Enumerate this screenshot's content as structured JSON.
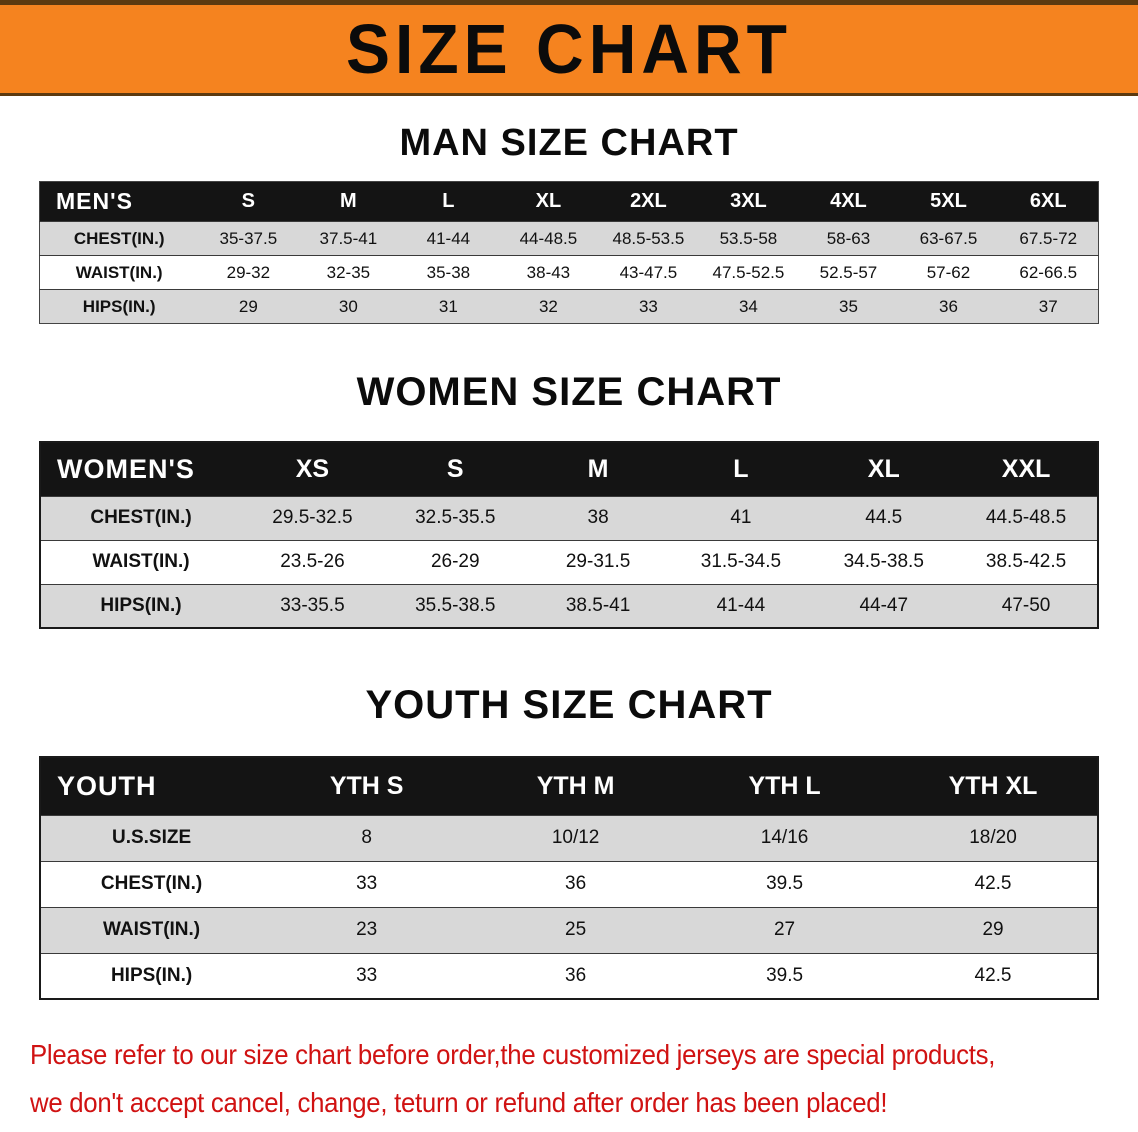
{
  "page": {
    "banner_title": "SIZE CHART",
    "note_line1": "Please refer to our size chart before order,the customized jerseys are special products,",
    "note_line2": "we don't accept cancel, change, teturn or refund after order has been placed!"
  },
  "colors": {
    "banner_bg": "#F5831F",
    "banner_border": "#5C3A10",
    "table_header_bg": "#141414",
    "table_header_text": "#FFFFFF",
    "row_bg": "#FFFFFF",
    "row_alt_bg": "#D8D8D8",
    "note_text": "#D01212",
    "body_text": "#111111"
  },
  "tables": [
    {
      "id": "men",
      "heading": "MAN SIZE CHART",
      "header_label": "MEN'S",
      "columns": [
        "S",
        "M",
        "L",
        "XL",
        "2XL",
        "3XL",
        "4XL",
        "5XL",
        "6XL"
      ],
      "rows": [
        {
          "label": "CHEST(IN.)",
          "values": [
            "35-37.5",
            "37.5-41",
            "41-44",
            "44-48.5",
            "48.5-53.5",
            "53.5-58",
            "58-63",
            "63-67.5",
            "67.5-72"
          ]
        },
        {
          "label": "WAIST(IN.)",
          "values": [
            "29-32",
            "32-35",
            "35-38",
            "38-43",
            "43-47.5",
            "47.5-52.5",
            "52.5-57",
            "57-62",
            "62-66.5"
          ]
        },
        {
          "label": "HIPS(IN.)",
          "values": [
            "29",
            "30",
            "31",
            "32",
            "33",
            "34",
            "35",
            "36",
            "37"
          ]
        }
      ]
    },
    {
      "id": "women",
      "heading": "WOMEN SIZE CHART",
      "header_label": "WOMEN'S",
      "columns": [
        "XS",
        "S",
        "M",
        "L",
        "XL",
        "XXL"
      ],
      "rows": [
        {
          "label": "CHEST(IN.)",
          "values": [
            "29.5-32.5",
            "32.5-35.5",
            "38",
            "41",
            "44.5",
            "44.5-48.5"
          ]
        },
        {
          "label": "WAIST(IN.)",
          "values": [
            "23.5-26",
            "26-29",
            "29-31.5",
            "31.5-34.5",
            "34.5-38.5",
            "38.5-42.5"
          ]
        },
        {
          "label": "HIPS(IN.)",
          "values": [
            "33-35.5",
            "35.5-38.5",
            "38.5-41",
            "41-44",
            "44-47",
            "47-50"
          ]
        }
      ]
    },
    {
      "id": "youth",
      "heading": "YOUTH SIZE CHART",
      "header_label": "YOUTH",
      "columns": [
        "YTH S",
        "YTH M",
        "YTH L",
        "YTH XL"
      ],
      "rows": [
        {
          "label": "U.S.SIZE",
          "values": [
            "8",
            "10/12",
            "14/16",
            "18/20"
          ]
        },
        {
          "label": "CHEST(IN.)",
          "values": [
            "33",
            "36",
            "39.5",
            "42.5"
          ]
        },
        {
          "label": "WAIST(IN.)",
          "values": [
            "23",
            "25",
            "27",
            "29"
          ]
        },
        {
          "label": "HIPS(IN.)",
          "values": [
            "33",
            "36",
            "39.5",
            "42.5"
          ]
        }
      ]
    }
  ]
}
